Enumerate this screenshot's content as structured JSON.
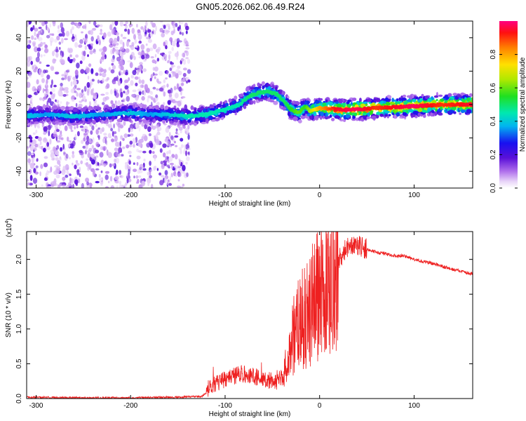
{
  "title": "GN05.2026.062.06.49.R24",
  "chart_data": [
    {
      "type": "heatmap",
      "xlabel": "Height of straight line (km)",
      "ylabel": "Frequency (Hz)",
      "xlim": [
        -310,
        162
      ],
      "ylim": [
        -50,
        50
      ],
      "x_ticks": [
        -300,
        -200,
        -100,
        0,
        100
      ],
      "y_ticks": [
        40,
        20,
        0,
        -20,
        -40
      ],
      "colorbar": {
        "label": "Normalized spectral amplitude",
        "range": [
          0,
          1
        ],
        "ticks": [
          "0.0",
          "0.2",
          "0.4",
          "0.6",
          "0.8"
        ],
        "tick_values": [
          0.0,
          0.2,
          0.4,
          0.6,
          0.8
        ]
      },
      "ridge": {
        "x": [
          -310,
          -290,
          -260,
          -230,
          -200,
          -180,
          -160,
          -140,
          -120,
          -100,
          -85,
          -75,
          -65,
          -55,
          -45,
          -38,
          -30,
          -22,
          -15,
          -10,
          0,
          20,
          40,
          60,
          100,
          130,
          162
        ],
        "freq": [
          -7,
          -6,
          -7,
          -6,
          -5,
          -6,
          -6,
          -7,
          -6,
          -3,
          0,
          5,
          7,
          8,
          6,
          2,
          -3,
          -5,
          -1,
          -4,
          -2,
          -3,
          -3,
          -2,
          -1,
          0,
          0
        ],
        "amplitude": [
          0.4,
          0.35,
          0.4,
          0.35,
          0.4,
          0.35,
          0.4,
          0.45,
          0.45,
          0.45,
          0.45,
          0.5,
          0.5,
          0.5,
          0.5,
          0.5,
          0.55,
          0.6,
          0.55,
          0.65,
          0.8,
          0.95,
          0.98,
          0.9,
          0.98,
          0.9,
          0.95
        ]
      },
      "noise_band": {
        "x_range": [
          -310,
          -138
        ],
        "freq_range": [
          -50,
          50
        ],
        "amplitude": 0.1
      },
      "grid": false
    },
    {
      "type": "line",
      "xlabel": "Height of straight line (km)",
      "ylabel": "SNR (10 * v/v)",
      "y_multiplier": "(x10",
      "y_multiplier_exp": "4",
      "y_multiplier_close": ")",
      "xlim": [
        -310,
        162
      ],
      "ylim": [
        0,
        2.4
      ],
      "x_ticks": [
        -300,
        -200,
        -100,
        0,
        100
      ],
      "y_ticks": [
        "0.0",
        "0.5",
        "1.0",
        "1.5",
        "2.0"
      ],
      "y_tick_values": [
        0.0,
        0.5,
        1.0,
        1.5,
        2.0
      ],
      "series": [
        {
          "color": "#ee2020",
          "x": [
            -310,
            -250,
            -200,
            -150,
            -125,
            -115,
            -105,
            -95,
            -85,
            -75,
            -65,
            -55,
            -45,
            -40,
            -35,
            -30,
            -25,
            -20,
            -15,
            -10,
            -5,
            0,
            5,
            10,
            15,
            20,
            25,
            30,
            35,
            40,
            45,
            50,
            60,
            70,
            80,
            90,
            100,
            110,
            120,
            130,
            140,
            150,
            162
          ],
          "values": [
            0.02,
            0.01,
            0.01,
            0.02,
            0.03,
            0.12,
            0.2,
            0.25,
            0.3,
            0.3,
            0.25,
            0.22,
            0.2,
            0.25,
            0.5,
            0.8,
            1.0,
            1.1,
            1.2,
            1.3,
            1.4,
            1.5,
            1.6,
            1.7,
            1.85,
            2.0,
            2.1,
            2.18,
            2.22,
            2.22,
            2.18,
            2.15,
            2.1,
            2.08,
            2.05,
            2.05,
            2.0,
            1.97,
            1.94,
            1.9,
            1.86,
            1.83,
            1.79
          ]
        }
      ],
      "grid": false
    }
  ]
}
